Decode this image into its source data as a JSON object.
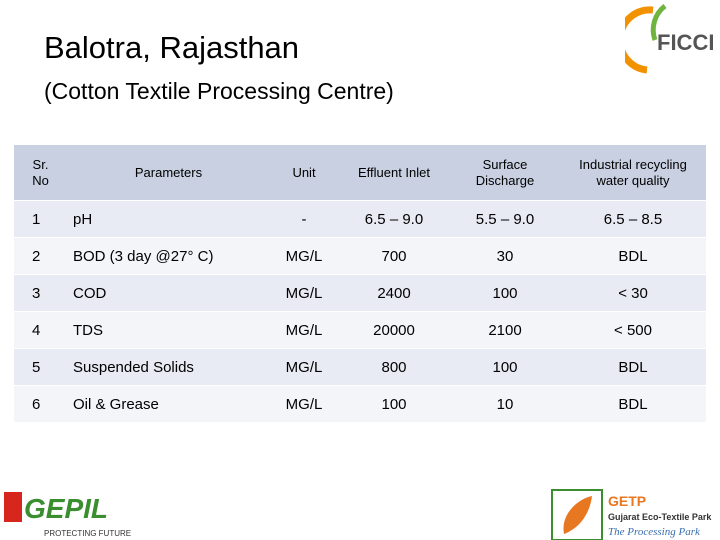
{
  "header": {
    "title": "Balotra, Rajasthan",
    "subtitle": "(Cotton Textile Processing Centre)"
  },
  "logos": {
    "ficci": "FICCI",
    "gepil": "GEPIL",
    "gepil_tagline": "PROTECTING FUTURE",
    "getp": "GETP",
    "getp_name": "Gujarat Eco-Textile Park",
    "getp_tagline": "The Processing Park"
  },
  "table": {
    "columns": [
      "Sr. No",
      "Parameters",
      "Unit",
      "Effluent Inlet",
      "Surface Discharge",
      "Industrial recycling water quality"
    ],
    "rows": [
      [
        "1",
        "pH",
        "-",
        "6.5 – 9.0",
        "5.5 – 9.0",
        "6.5 – 8.5"
      ],
      [
        "2",
        "BOD (3 day @27° C)",
        "MG/L",
        "700",
        "30",
        "BDL"
      ],
      [
        "3",
        "COD",
        "MG/L",
        "2400",
        "100",
        "< 30"
      ],
      [
        "4",
        "TDS",
        "MG/L",
        "20000",
        "2100",
        "< 500"
      ],
      [
        "5",
        "Suspended Solids",
        "MG/L",
        "800",
        "100",
        "BDL"
      ],
      [
        "6",
        "Oil & Grease",
        "MG/L",
        "100",
        "10",
        "BDL"
      ]
    ]
  }
}
